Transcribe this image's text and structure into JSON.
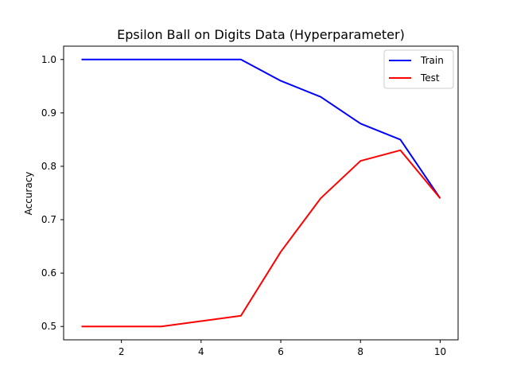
{
  "chart_data": {
    "type": "line",
    "title": "Epsilon Ball on Digits Data (Hyperparameter)",
    "xlabel": "",
    "ylabel": "Accuracy",
    "x": [
      1,
      2,
      3,
      4,
      5,
      6,
      7,
      8,
      9,
      10
    ],
    "xlim": [
      0.55,
      10.45
    ],
    "ylim": [
      0.475,
      1.025
    ],
    "xticks": [
      2,
      4,
      6,
      8,
      10
    ],
    "yticks": [
      0.5,
      0.6,
      0.7,
      0.8,
      0.9,
      1.0
    ],
    "xtick_labels": [
      "2",
      "4",
      "6",
      "8",
      "10"
    ],
    "ytick_labels": [
      "0.5",
      "0.6",
      "0.7",
      "0.8",
      "0.9",
      "1.0"
    ],
    "grid": false,
    "legend_position": "top-right",
    "series": [
      {
        "name": "Train",
        "color": "#0000ff",
        "values": [
          1.0,
          1.0,
          1.0,
          1.0,
          1.0,
          0.96,
          0.93,
          0.88,
          0.85,
          0.74
        ]
      },
      {
        "name": "Test",
        "color": "#ff0000",
        "values": [
          0.5,
          0.5,
          0.5,
          0.51,
          0.52,
          0.64,
          0.74,
          0.81,
          0.83,
          0.74
        ]
      }
    ]
  }
}
